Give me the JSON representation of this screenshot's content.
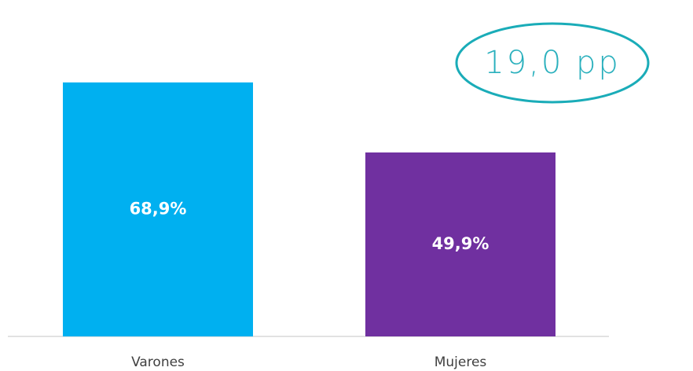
{
  "chart_data": {
    "type": "bar",
    "categories": [
      "Varones",
      "Mujeres"
    ],
    "values": [
      68.9,
      49.9
    ],
    "value_labels": [
      "68,9%",
      "49,9%"
    ],
    "colors": [
      "#00b0f0",
      "#7030a0"
    ],
    "annotation": "19,0 pp"
  }
}
